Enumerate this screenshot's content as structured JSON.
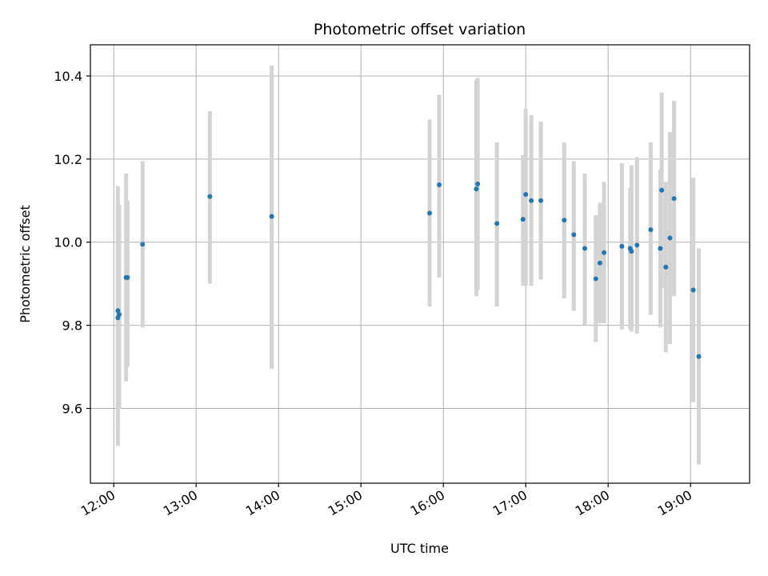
{
  "chart_data": {
    "type": "scatter",
    "title": "Photometric offset variation",
    "xlabel": "UTC time",
    "ylabel": "Photometric offset",
    "x_ticks": [
      "12:00",
      "13:00",
      "14:00",
      "15:00",
      "16:00",
      "17:00",
      "18:00",
      "19:00"
    ],
    "y_ticks": [
      "9.6",
      "9.8",
      "10.0",
      "10.2",
      "10.4"
    ],
    "xlim": [
      "11:43",
      "19:43"
    ],
    "ylim": [
      9.42,
      10.475
    ],
    "grid": true,
    "colors": {
      "point": "#1f77b4",
      "errorbar": "#d3d3d3",
      "grid": "#b0b0b0"
    },
    "points": [
      {
        "t": "12:03",
        "y": 9.835,
        "lo": 9.51,
        "hi": 10.135
      },
      {
        "t": "12:03",
        "y": 9.818,
        "lo": 9.555,
        "hi": 10.1
      },
      {
        "t": "12:04",
        "y": 9.826,
        "lo": 9.6,
        "hi": 10.09
      },
      {
        "t": "12:09",
        "y": 9.915,
        "lo": 9.665,
        "hi": 10.165
      },
      {
        "t": "12:10",
        "y": 9.915,
        "lo": 9.7,
        "hi": 10.1
      },
      {
        "t": "12:21",
        "y": 9.995,
        "lo": 9.795,
        "hi": 10.195
      },
      {
        "t": "13:10",
        "y": 10.11,
        "lo": 9.9,
        "hi": 10.315
      },
      {
        "t": "13:55",
        "y": 10.062,
        "lo": 9.695,
        "hi": 10.425
      },
      {
        "t": "15:50",
        "y": 10.07,
        "lo": 9.845,
        "hi": 10.295
      },
      {
        "t": "15:57",
        "y": 10.138,
        "lo": 9.915,
        "hi": 10.355
      },
      {
        "t": "16:24",
        "y": 10.128,
        "lo": 9.87,
        "hi": 10.39
      },
      {
        "t": "16:25",
        "y": 10.14,
        "lo": 9.885,
        "hi": 10.395
      },
      {
        "t": "16:39",
        "y": 10.045,
        "lo": 9.845,
        "hi": 10.24
      },
      {
        "t": "16:58",
        "y": 10.055,
        "lo": 9.895,
        "hi": 10.21
      },
      {
        "t": "17:00",
        "y": 10.115,
        "lo": 9.895,
        "hi": 10.32
      },
      {
        "t": "17:04",
        "y": 10.1,
        "lo": 9.895,
        "hi": 10.305
      },
      {
        "t": "17:11",
        "y": 10.1,
        "lo": 9.91,
        "hi": 10.29
      },
      {
        "t": "17:28",
        "y": 10.053,
        "lo": 9.865,
        "hi": 10.24
      },
      {
        "t": "17:35",
        "y": 10.018,
        "lo": 9.835,
        "hi": 10.195
      },
      {
        "t": "17:43",
        "y": 9.985,
        "lo": 9.8,
        "hi": 10.165
      },
      {
        "t": "17:51",
        "y": 9.912,
        "lo": 9.76,
        "hi": 10.065
      },
      {
        "t": "17:54",
        "y": 9.95,
        "lo": 9.805,
        "hi": 10.095
      },
      {
        "t": "17:57",
        "y": 9.975,
        "lo": 9.805,
        "hi": 10.145
      },
      {
        "t": "18:10",
        "y": 9.99,
        "lo": 9.79,
        "hi": 10.19
      },
      {
        "t": "18:16",
        "y": 9.985,
        "lo": 9.79,
        "hi": 10.13
      },
      {
        "t": "18:17",
        "y": 9.978,
        "lo": 9.785,
        "hi": 10.185
      },
      {
        "t": "18:21",
        "y": 9.993,
        "lo": 9.78,
        "hi": 10.205
      },
      {
        "t": "18:31",
        "y": 10.03,
        "lo": 9.825,
        "hi": 10.24
      },
      {
        "t": "18:38",
        "y": 9.985,
        "lo": 9.795,
        "hi": 10.175
      },
      {
        "t": "18:39",
        "y": 10.125,
        "lo": 9.89,
        "hi": 10.36
      },
      {
        "t": "18:42",
        "y": 9.94,
        "lo": 9.735,
        "hi": 10.145
      },
      {
        "t": "18:45",
        "y": 10.01,
        "lo": 9.755,
        "hi": 10.265
      },
      {
        "t": "18:48",
        "y": 10.105,
        "lo": 9.87,
        "hi": 10.34
      },
      {
        "t": "19:02",
        "y": 9.885,
        "lo": 9.615,
        "hi": 10.155
      },
      {
        "t": "19:06",
        "y": 9.725,
        "lo": 9.465,
        "hi": 9.985
      }
    ]
  }
}
